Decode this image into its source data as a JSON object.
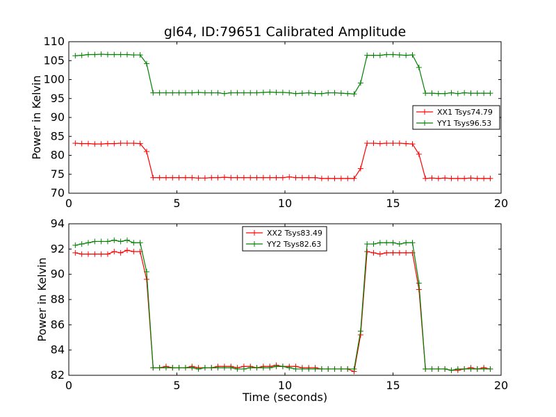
{
  "chart_data": [
    {
      "type": "line",
      "title": "gl64, ID:79651 Calibrated Amplitude",
      "xlabel": "",
      "ylabel": "Power in Kelvin",
      "xlim": [
        0,
        20
      ],
      "ylim": [
        70,
        110
      ],
      "xticks": [
        0,
        5,
        10,
        15,
        20
      ],
      "yticks": [
        70,
        75,
        80,
        85,
        90,
        95,
        100,
        105,
        110
      ],
      "grid": false,
      "legend": "center-right",
      "x": [
        0.3,
        0.6,
        0.9,
        1.2,
        1.5,
        1.8,
        2.1,
        2.4,
        2.7,
        3.0,
        3.3,
        3.6,
        3.9,
        4.2,
        4.5,
        4.8,
        5.1,
        5.4,
        5.7,
        6.0,
        6.3,
        6.6,
        6.9,
        7.2,
        7.5,
        7.8,
        8.1,
        8.4,
        8.7,
        9.0,
        9.3,
        9.6,
        9.9,
        10.2,
        10.5,
        10.8,
        11.1,
        11.4,
        11.7,
        12.0,
        12.3,
        12.6,
        12.9,
        13.2,
        13.5,
        13.8,
        14.1,
        14.4,
        14.7,
        15.0,
        15.3,
        15.6,
        15.9,
        16.2,
        16.5,
        16.8,
        17.1,
        17.4,
        17.7,
        18.0,
        18.3,
        18.6,
        18.9,
        19.2,
        19.5
      ],
      "series": [
        {
          "name": "XX1 Tsys74.79",
          "color": "#ff0000",
          "values": [
            83.2,
            83.1,
            83.1,
            83.0,
            83.0,
            83.1,
            83.1,
            83.2,
            83.2,
            83.2,
            83.1,
            81.0,
            74.1,
            74.1,
            74.1,
            74.1,
            74.1,
            74.1,
            74.1,
            74.0,
            74.0,
            74.1,
            74.1,
            74.2,
            74.1,
            74.1,
            74.1,
            74.1,
            74.1,
            74.1,
            74.1,
            74.1,
            74.1,
            74.3,
            74.1,
            74.1,
            74.1,
            74.1,
            73.9,
            73.9,
            73.9,
            73.9,
            73.9,
            73.9,
            76.5,
            83.2,
            83.2,
            83.1,
            83.2,
            83.2,
            83.2,
            83.1,
            83.0,
            80.3,
            73.9,
            74.0,
            73.9,
            74.0,
            73.9,
            73.9,
            73.9,
            74.0,
            73.9,
            73.9,
            73.9
          ]
        },
        {
          "name": "YY1 Tsys96.53",
          "color": "#008000",
          "values": [
            106.3,
            106.4,
            106.6,
            106.6,
            106.7,
            106.6,
            106.6,
            106.6,
            106.6,
            106.5,
            106.5,
            104.2,
            96.5,
            96.5,
            96.5,
            96.5,
            96.5,
            96.5,
            96.5,
            96.6,
            96.5,
            96.5,
            96.5,
            96.3,
            96.5,
            96.5,
            96.5,
            96.5,
            96.5,
            96.6,
            96.7,
            96.6,
            96.6,
            96.5,
            96.3,
            96.4,
            96.5,
            96.3,
            96.3,
            96.5,
            96.5,
            96.4,
            96.3,
            96.2,
            99.1,
            106.4,
            106.4,
            106.4,
            106.6,
            106.6,
            106.5,
            106.4,
            106.5,
            103.2,
            96.4,
            96.4,
            96.3,
            96.3,
            96.5,
            96.3,
            96.5,
            96.4,
            96.4,
            96.4,
            96.4
          ]
        }
      ]
    },
    {
      "type": "line",
      "title": "",
      "xlabel": "Time (seconds)",
      "ylabel": "Power in Kelvin",
      "xlim": [
        0,
        20
      ],
      "ylim": [
        82,
        94
      ],
      "xticks": [
        0,
        5,
        10,
        15,
        20
      ],
      "yticks": [
        82,
        84,
        86,
        88,
        90,
        92,
        94
      ],
      "grid": false,
      "legend": "top-center",
      "x": [
        0.3,
        0.6,
        0.9,
        1.2,
        1.5,
        1.8,
        2.1,
        2.4,
        2.7,
        3.0,
        3.3,
        3.6,
        3.9,
        4.2,
        4.5,
        4.8,
        5.1,
        5.4,
        5.7,
        6.0,
        6.3,
        6.6,
        6.9,
        7.2,
        7.5,
        7.8,
        8.1,
        8.4,
        8.7,
        9.0,
        9.3,
        9.6,
        9.9,
        10.2,
        10.5,
        10.8,
        11.1,
        11.4,
        11.7,
        12.0,
        12.3,
        12.6,
        12.9,
        13.2,
        13.5,
        13.8,
        14.1,
        14.4,
        14.7,
        15.0,
        15.3,
        15.6,
        15.9,
        16.2,
        16.5,
        16.8,
        17.1,
        17.4,
        17.7,
        18.0,
        18.3,
        18.6,
        18.9,
        19.2,
        19.5
      ],
      "series": [
        {
          "name": "XX2 Tsys83.49",
          "color": "#ff0000",
          "values": [
            91.7,
            91.6,
            91.6,
            91.6,
            91.6,
            91.6,
            91.8,
            91.7,
            91.9,
            91.8,
            91.8,
            89.6,
            82.6,
            82.6,
            82.7,
            82.6,
            82.6,
            82.6,
            82.7,
            82.6,
            82.6,
            82.6,
            82.7,
            82.7,
            82.7,
            82.6,
            82.7,
            82.7,
            82.6,
            82.7,
            82.7,
            82.8,
            82.7,
            82.7,
            82.7,
            82.6,
            82.6,
            82.6,
            82.5,
            82.5,
            82.5,
            82.5,
            82.5,
            82.3,
            85.2,
            91.8,
            91.7,
            91.6,
            91.7,
            91.7,
            91.7,
            91.7,
            91.7,
            88.8,
            82.5,
            82.5,
            82.5,
            82.5,
            82.4,
            82.4,
            82.5,
            82.6,
            82.5,
            82.6,
            82.5
          ]
        },
        {
          "name": "YY2 Tsys82.63",
          "color": "#008000",
          "values": [
            92.3,
            92.4,
            92.5,
            92.6,
            92.6,
            92.6,
            92.7,
            92.6,
            92.7,
            92.5,
            92.5,
            90.2,
            82.6,
            82.6,
            82.6,
            82.6,
            82.6,
            82.6,
            82.6,
            82.5,
            82.6,
            82.6,
            82.6,
            82.6,
            82.6,
            82.5,
            82.5,
            82.6,
            82.6,
            82.6,
            82.6,
            82.7,
            82.7,
            82.6,
            82.5,
            82.5,
            82.5,
            82.5,
            82.5,
            82.5,
            82.5,
            82.5,
            82.5,
            82.5,
            85.5,
            92.4,
            92.4,
            92.5,
            92.5,
            92.5,
            92.4,
            92.5,
            92.5,
            89.3,
            82.5,
            82.5,
            82.5,
            82.5,
            82.4,
            82.5,
            82.5,
            82.5,
            82.5,
            82.5,
            82.5
          ]
        }
      ]
    }
  ]
}
